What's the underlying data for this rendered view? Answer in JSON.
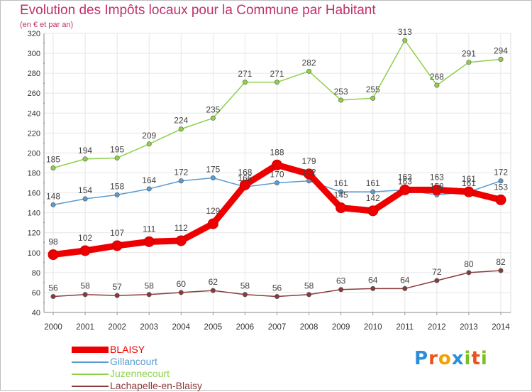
{
  "title": "Evolution des Impôts locaux pour la Commune par Habitant",
  "subtitle": "(en € et par an)",
  "logo": {
    "text": "Proxiti",
    "letters": [
      "P",
      "r",
      "o",
      "x",
      "i",
      "t",
      "i"
    ],
    "colors": [
      "#2a8fd8",
      "#e8541c",
      "#f2a200",
      "#2a8fd8",
      "#7cbf1e",
      "#e8541c",
      "#7cbf1e"
    ]
  },
  "chart_data": {
    "type": "line",
    "categories": [
      "2000",
      "2001",
      "2002",
      "2003",
      "2004",
      "2005",
      "2006",
      "2007",
      "2008",
      "2009",
      "2010",
      "2011",
      "2012",
      "2013",
      "2014"
    ],
    "ylim": [
      40,
      320
    ],
    "yticks": [
      "40",
      "60",
      "80",
      "100",
      "120",
      "140",
      "160",
      "180",
      "200",
      "220",
      "240",
      "260",
      "280",
      "300",
      "320"
    ],
    "grid": true,
    "legend_position": "bottom-left",
    "series": [
      {
        "name": "Juzennecourt",
        "color": "#8ed04a",
        "values": [
          185,
          194,
          195,
          209,
          224,
          235,
          271,
          271,
          282,
          253,
          255,
          313,
          268,
          291,
          294
        ],
        "labels": [
          "185",
          "194",
          "195",
          "209",
          "224",
          "235",
          "271",
          "271",
          "282",
          "253",
          "255",
          "313",
          "268",
          "291",
          "294"
        ]
      },
      {
        "name": "Gillancourt",
        "color": "#5b9bd0",
        "values": [
          148,
          154,
          158,
          164,
          172,
          175,
          166,
          170,
          172,
          161,
          161,
          163,
          158,
          161,
          172
        ],
        "labels": [
          "148",
          "154",
          "158",
          "164",
          "172",
          "175",
          "166",
          "170",
          "172",
          "161",
          "161",
          "163",
          "158",
          "161",
          "172"
        ]
      },
      {
        "name": "Lachapelle-en-Blaisy",
        "color": "#8b3a3a",
        "values": [
          56,
          58,
          57,
          58,
          60,
          62,
          58,
          56,
          58,
          63,
          64,
          64,
          72,
          80,
          82
        ],
        "labels": [
          "56",
          "58",
          "57",
          "58",
          "60",
          "62",
          "58",
          "56",
          "58",
          "63",
          "64",
          "64",
          "72",
          "80",
          "82"
        ]
      },
      {
        "name": "BLAISY",
        "color": "#ee0000",
        "values": [
          98,
          102,
          107,
          111,
          112,
          129,
          168,
          188,
          179,
          145,
          142,
          163,
          163,
          161,
          153
        ],
        "labels": [
          "98",
          "102",
          "107",
          "111",
          "112",
          "129",
          "168",
          "188",
          "179",
          "145",
          "142",
          "163",
          "163",
          "161",
          "153"
        ]
      }
    ],
    "legend_order": [
      "BLAISY",
      "Gillancourt",
      "Juzennecourt",
      "Lachapelle-en-Blaisy"
    ],
    "legend_colors": [
      "#ee0000",
      "#5b9bd0",
      "#8ed04a",
      "#8b3a3a"
    ]
  }
}
